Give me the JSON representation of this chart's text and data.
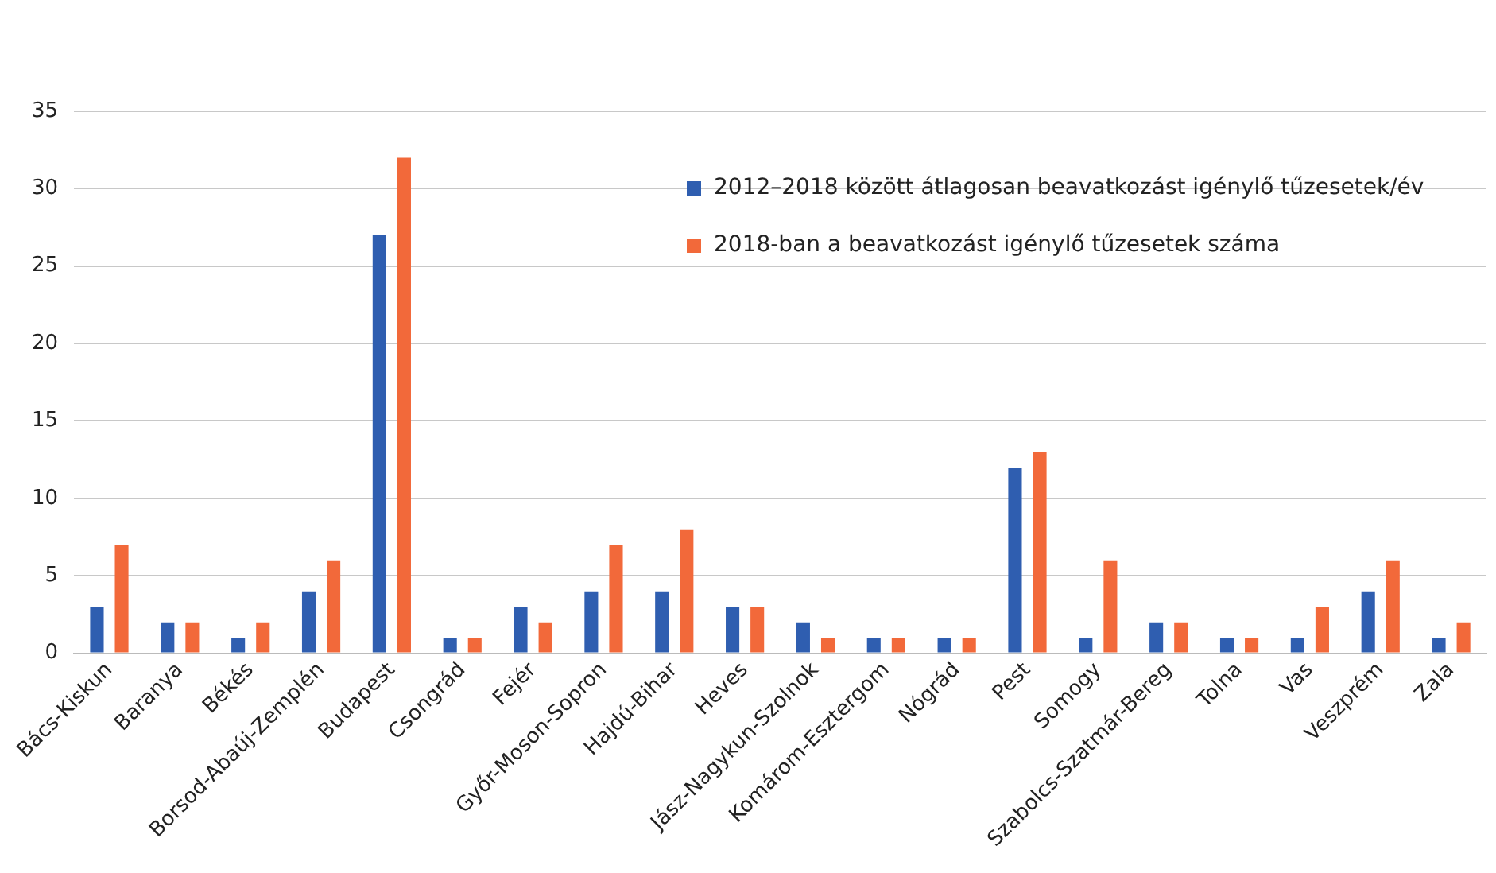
{
  "chart_data": {
    "type": "bar",
    "categories": [
      "Bács-Kiskun",
      "Baranya",
      "Békés",
      "Borsod-Abaúj-Zemplén",
      "Budapest",
      "Csongrád",
      "Fejér",
      "Győr-Moson-Sopron",
      "Hajdú-Bihar",
      "Heves",
      "Jász-Nagykun-Szolnok",
      "Komárom-Esztergom",
      "Nógrád",
      "Pest",
      "Somogy",
      "Szabolcs-Szatmár-Bereg",
      "Tolna",
      "Vas",
      "Veszprém",
      "Zala"
    ],
    "series": [
      {
        "name": "2012–2018 között átlagosan beavatkozást igénylő tűzesetek/év",
        "color": "#2f5eb0",
        "values": [
          3,
          2,
          1,
          4,
          27,
          1,
          3,
          4,
          4,
          3,
          2,
          1,
          1,
          12,
          1,
          2,
          1,
          1,
          4,
          1
        ]
      },
      {
        "name": "2018-ban a beavatkozást igénylő tűzesetek száma",
        "color": "#f2693a",
        "values": [
          7,
          2,
          2,
          6,
          32,
          1,
          2,
          7,
          8,
          3,
          1,
          1,
          1,
          13,
          6,
          2,
          1,
          3,
          6,
          2
        ]
      }
    ],
    "ylim": [
      0,
      35
    ],
    "yticks": [
      0,
      5,
      10,
      15,
      20,
      25,
      30,
      35
    ],
    "grid": "y",
    "legend": "top right"
  }
}
